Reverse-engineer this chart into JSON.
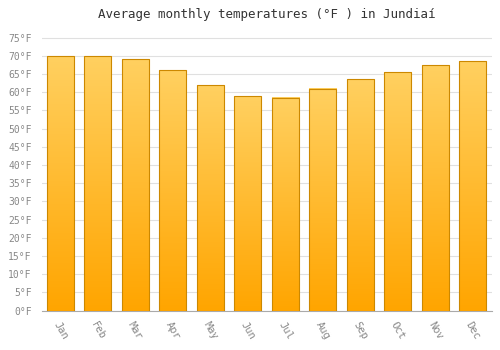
{
  "title": "Average monthly temperatures (°F ) in Jundiaí",
  "months": [
    "Jan",
    "Feb",
    "Mar",
    "Apr",
    "May",
    "Jun",
    "Jul",
    "Aug",
    "Sep",
    "Oct",
    "Nov",
    "Dec"
  ],
  "values": [
    70,
    70,
    69,
    66,
    62,
    59,
    58.5,
    61,
    63.5,
    65.5,
    67.5,
    68.5
  ],
  "bar_color_top": "#FFD966",
  "bar_color_bottom": "#FFA500",
  "bar_edge_color": "#CC8800",
  "background_color": "#FFFFFF",
  "grid_color": "#E0E0E0",
  "yticks": [
    0,
    5,
    10,
    15,
    20,
    25,
    30,
    35,
    40,
    45,
    50,
    55,
    60,
    65,
    70,
    75
  ],
  "ylim": [
    0,
    78
  ],
  "tick_label_color": "#888888",
  "title_color": "#333333",
  "font_family": "monospace",
  "title_fontsize": 9,
  "tick_fontsize": 7
}
